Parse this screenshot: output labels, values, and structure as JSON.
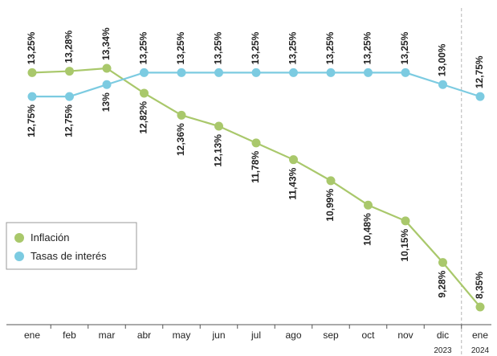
{
  "chart_data": {
    "type": "line",
    "categories": [
      "ene",
      "feb",
      "mar",
      "abr",
      "may",
      "jun",
      "jul",
      "ago",
      "sep",
      "oct",
      "nov",
      "dic",
      "ene"
    ],
    "year_labels": [
      "2023",
      "2024"
    ],
    "series": [
      {
        "name": "Inflación",
        "color": "#a9c86b",
        "values": [
          13.25,
          13.28,
          13.34,
          12.82,
          12.36,
          12.13,
          11.78,
          11.43,
          10.99,
          10.48,
          10.15,
          9.28,
          8.35
        ],
        "labels": [
          "13,25%",
          "13,28%",
          "13,34%",
          "12,82%",
          "12,36%",
          "12,13%",
          "11,78%",
          "11,43%",
          "10,99%",
          "10,48%",
          "10,15%",
          "9,28%",
          "8,35%"
        ]
      },
      {
        "name": "Tasas de interés",
        "color": "#7ccbe1",
        "values": [
          12.75,
          12.75,
          13.0,
          13.25,
          13.25,
          13.25,
          13.25,
          13.25,
          13.25,
          13.25,
          13.25,
          13.0,
          12.75
        ],
        "labels": [
          "12,75%",
          "12,75%",
          "13%",
          "13,25%",
          "13,25%",
          "13,25%",
          "13,25%",
          "13,25%",
          "13,25%",
          "13,25%",
          "13,25%",
          "13,00%",
          "12,75%"
        ]
      }
    ],
    "grid": false,
    "legend_position": "bottom-left",
    "year_separator_after_category": 11
  }
}
